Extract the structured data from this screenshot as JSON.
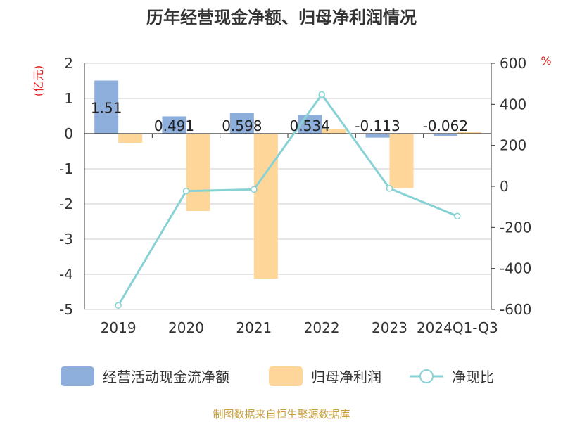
{
  "chart_data": {
    "type": "bar",
    "title": "历年经营现金净额、归母净利润情况",
    "categories": [
      "2019",
      "2020",
      "2021",
      "2022",
      "2023",
      "2024Q1-Q3"
    ],
    "series": [
      {
        "name": "经营活动现金流净额",
        "axis": "left",
        "kind": "bar",
        "values": [
          1.51,
          0.491,
          0.598,
          0.534,
          -0.113,
          -0.062
        ],
        "data_labels": [
          "1.51",
          "0.491",
          "0.598",
          "0.534",
          "-0.113",
          "-0.062"
        ]
      },
      {
        "name": "归母净利润",
        "axis": "left",
        "kind": "bar",
        "values": [
          -0.26,
          -2.2,
          -4.12,
          0.12,
          -1.55,
          0.05
        ]
      },
      {
        "name": "净现比",
        "axis": "right",
        "kind": "line",
        "values": [
          -580,
          -23,
          -15,
          448,
          -10,
          -145
        ]
      }
    ],
    "y_left": {
      "label": "(亿元)",
      "ylim": [
        -5,
        2
      ],
      "ticks": [
        "2",
        "1",
        "0",
        "-1",
        "-2",
        "-3",
        "-4",
        "-5"
      ]
    },
    "y_right": {
      "label": "%",
      "ylim": [
        -600,
        600
      ],
      "ticks": [
        "600",
        "400",
        "200",
        "0",
        "-200",
        "-400",
        "-600"
      ]
    },
    "grid": true,
    "legend": "bottom",
    "colors": {
      "operating_cash": "#8eafdb",
      "net_profit": "#ffd699",
      "ratio": "#88d2d6"
    },
    "source": "制图数据来自恒生聚源数据库"
  }
}
